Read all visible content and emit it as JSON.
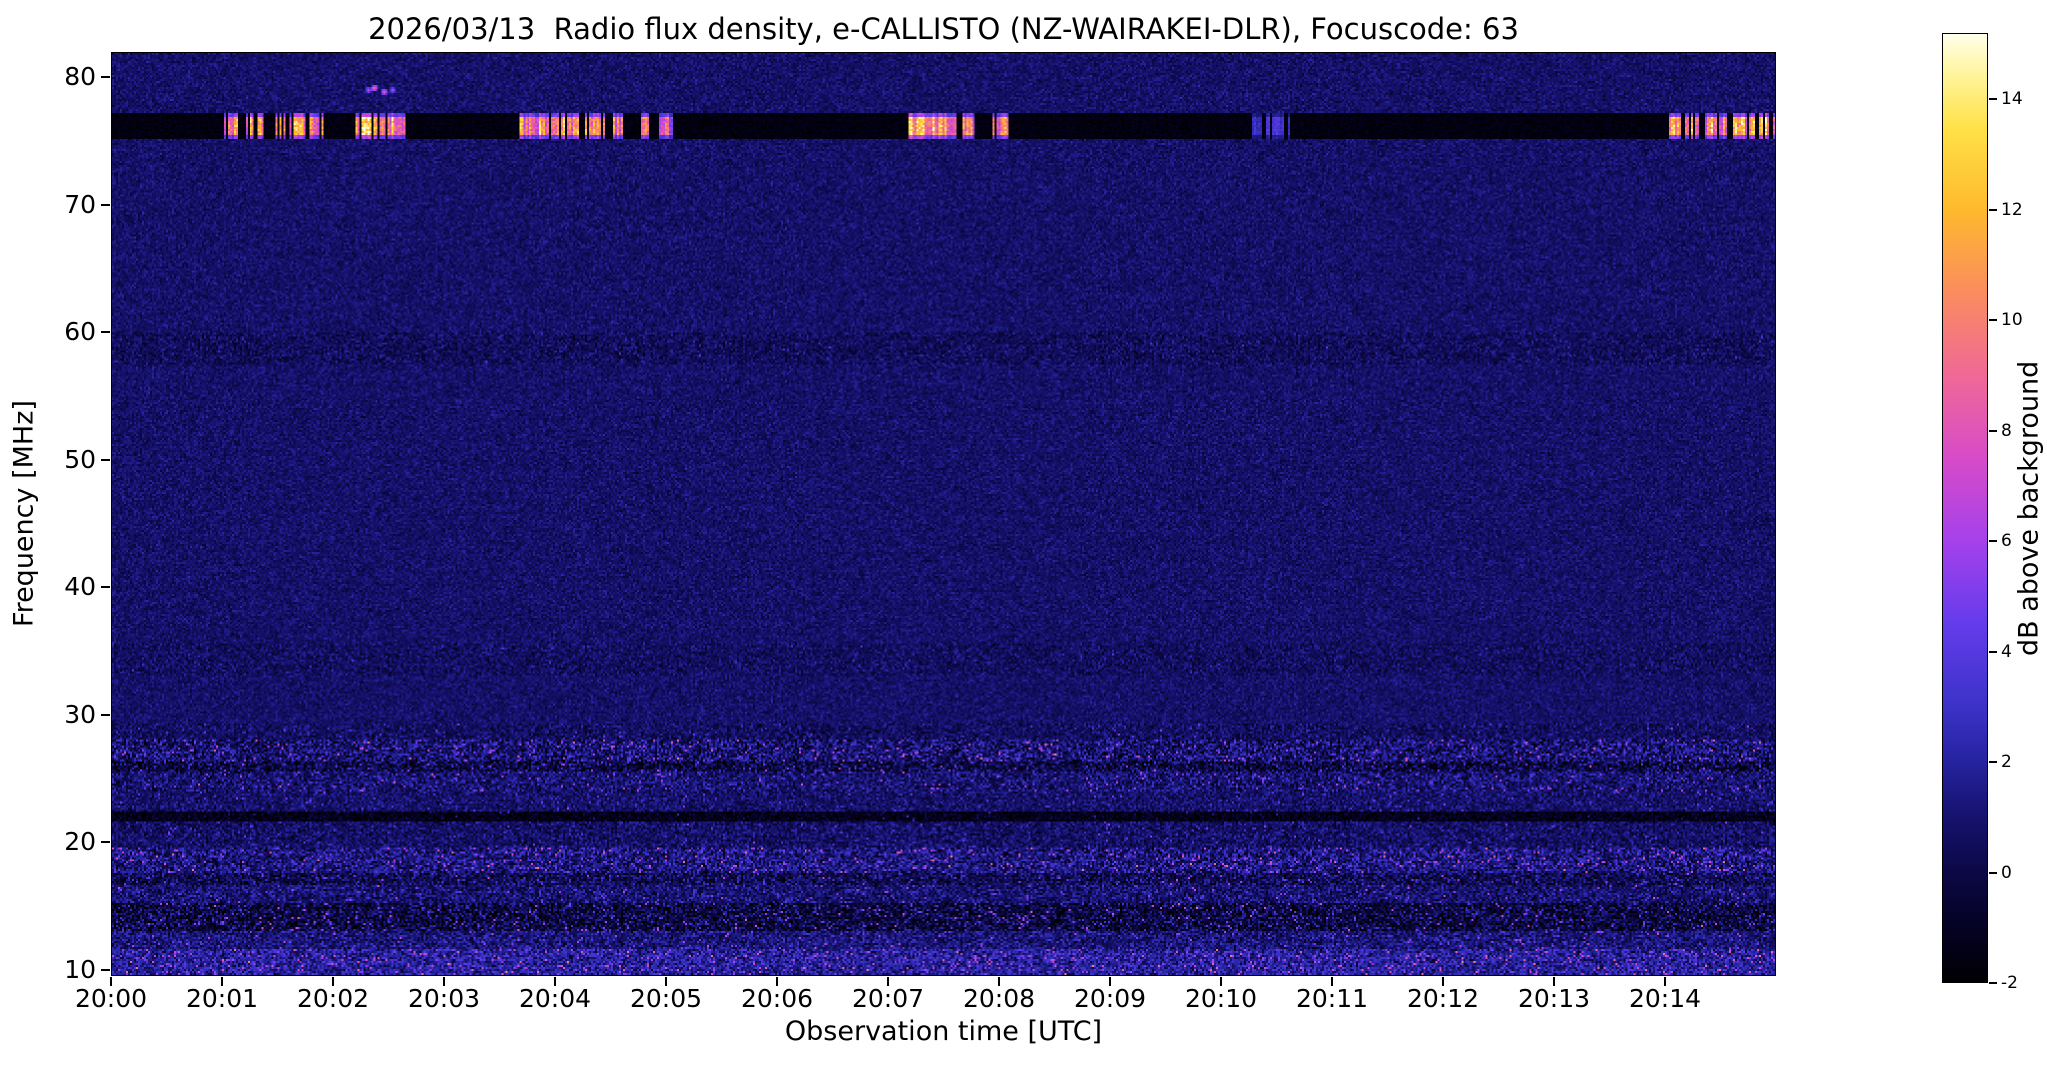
{
  "chart_data": {
    "type": "heatmap",
    "title": "2026/03/13  Radio flux density, e-CALLISTO (NZ-WAIRAKEI-DLR), Focuscode: 63",
    "xlabel": "Observation time [UTC]",
    "ylabel": "Frequency [MHz]",
    "x_ticks": [
      "20:00",
      "20:01",
      "20:02",
      "20:03",
      "20:04",
      "20:05",
      "20:06",
      "20:07",
      "20:08",
      "20:09",
      "20:10",
      "20:11",
      "20:12",
      "20:13",
      "20:14"
    ],
    "x_range_minutes": [
      0,
      15
    ],
    "y_ticks": [
      80,
      70,
      60,
      50,
      40,
      30,
      20,
      10
    ],
    "y_range_mhz": [
      9.5,
      82
    ],
    "grid": false,
    "legend": "none",
    "colorbar": {
      "label": "dB above background",
      "ticks": [
        14,
        12,
        10,
        8,
        6,
        4,
        2,
        0,
        -2
      ],
      "vmin": -2,
      "vmax": 15.2,
      "stops": [
        {
          "t": 0.0,
          "c": [
            0,
            0,
            3
          ]
        },
        {
          "t": 0.058,
          "c": [
            5,
            2,
            35
          ]
        },
        {
          "t": 0.116,
          "c": [
            12,
            8,
            70
          ]
        },
        {
          "t": 0.174,
          "c": [
            22,
            18,
            110
          ]
        },
        {
          "t": 0.233,
          "c": [
            38,
            35,
            160
          ]
        },
        {
          "t": 0.291,
          "c": [
            60,
            50,
            200
          ]
        },
        {
          "t": 0.378,
          "c": [
            100,
            60,
            235
          ]
        },
        {
          "t": 0.465,
          "c": [
            165,
            65,
            235
          ]
        },
        {
          "t": 0.552,
          "c": [
            215,
            75,
            200
          ]
        },
        {
          "t": 0.64,
          "c": [
            240,
            105,
            150
          ]
        },
        {
          "t": 0.727,
          "c": [
            250,
            140,
            95
          ]
        },
        {
          "t": 0.814,
          "c": [
            254,
            185,
            45
          ]
        },
        {
          "t": 0.9,
          "c": [
            255,
            225,
            70
          ]
        },
        {
          "t": 0.96,
          "c": [
            255,
            245,
            160
          ]
        },
        {
          "t": 1.0,
          "c": [
            255,
            255,
            235
          ]
        }
      ]
    },
    "background": {
      "mean_db": 0.8,
      "noise_std_db": 0.55
    },
    "features": {
      "rfi_band": {
        "freq_range": [
          75.3,
          77.25
        ],
        "level_db": -2,
        "bursts": [
          [
            1.02,
            1.1,
            12
          ],
          [
            1.22,
            1.35,
            13
          ],
          [
            1.48,
            1.72,
            14
          ],
          [
            1.8,
            1.88,
            12
          ],
          [
            2.18,
            2.42,
            15
          ],
          [
            2.45,
            2.62,
            14
          ],
          [
            3.68,
            3.82,
            13
          ],
          [
            3.86,
            4.02,
            14
          ],
          [
            4.06,
            4.18,
            13
          ],
          [
            4.28,
            4.42,
            13
          ],
          [
            4.5,
            4.58,
            12
          ],
          [
            4.76,
            4.84,
            11
          ],
          [
            4.95,
            5.03,
            10
          ],
          [
            7.18,
            7.45,
            15
          ],
          [
            7.48,
            7.6,
            13
          ],
          [
            7.68,
            7.76,
            12
          ],
          [
            7.95,
            8.06,
            13
          ],
          [
            10.3,
            10.6,
            4
          ],
          [
            14.05,
            14.28,
            14
          ],
          [
            14.38,
            14.54,
            13
          ],
          [
            14.62,
            14.8,
            13
          ],
          [
            14.86,
            15.0,
            14
          ]
        ]
      },
      "dots_79mhz": [
        [
          2.3,
          79.1,
          7
        ],
        [
          2.36,
          79.35,
          9
        ],
        [
          2.44,
          79.0,
          8
        ],
        [
          2.52,
          79.2,
          6
        ]
      ],
      "noise_bands": [
        {
          "freq": [
            9.5,
            11.5
          ],
          "base_db": 1.9,
          "noise_db": 1.15,
          "speckle_prob": 0.07,
          "speckle_db": 4.5
        },
        {
          "freq": [
            11.5,
            13.0
          ],
          "base_db": 1.1,
          "noise_db": 1.0,
          "speckle_prob": 0.04,
          "speckle_db": 3.5
        },
        {
          "freq": [
            13.0,
            15.2
          ],
          "base_db": -0.2,
          "noise_db": 1.4,
          "speckle_prob": 0.05,
          "speckle_db": 4.5
        },
        {
          "freq": [
            15.2,
            16.5
          ],
          "base_db": 0.9,
          "noise_db": 1.0,
          "speckle_prob": 0.03,
          "speckle_db": 3.5
        },
        {
          "freq": [
            16.5,
            17.5
          ],
          "base_db": 0.3,
          "noise_db": 1.15,
          "speckle_prob": 0.03,
          "speckle_db": 3.5
        },
        {
          "freq": [
            17.5,
            19.5
          ],
          "base_db": 1.2,
          "noise_db": 1.3,
          "speckle_prob": 0.06,
          "speckle_db": 4.5
        },
        {
          "freq": [
            19.5,
            21.6
          ],
          "base_db": 0.7,
          "noise_db": 0.85,
          "speckle_prob": 0.02,
          "speckle_db": 3.0
        },
        {
          "freq": [
            21.6,
            22.4
          ],
          "base_db": -1.3,
          "noise_db": 0.7,
          "speckle_prob": 0.01,
          "speckle_db": 3.0
        },
        {
          "freq": [
            22.4,
            24.0
          ],
          "base_db": 0.8,
          "noise_db": 0.8,
          "speckle_prob": 0.02,
          "speckle_db": 3.0
        },
        {
          "freq": [
            24.0,
            25.5
          ],
          "base_db": 0.9,
          "noise_db": 1.05,
          "speckle_prob": 0.04,
          "speckle_db": 4.0
        },
        {
          "freq": [
            25.5,
            26.3
          ],
          "base_db": -0.1,
          "noise_db": 1.3,
          "speckle_prob": 0.04,
          "speckle_db": 4.0
        },
        {
          "freq": [
            26.3,
            28.0
          ],
          "base_db": 0.9,
          "noise_db": 1.35,
          "speckle_prob": 0.05,
          "speckle_db": 4.5
        },
        {
          "freq": [
            28.0,
            29.2
          ],
          "base_db": 0.6,
          "noise_db": 0.8,
          "speckle_prob": 0.015,
          "speckle_db": 3.0
        },
        {
          "freq": [
            33.0,
            35.5
          ],
          "base_db": 0.6,
          "noise_db": 0.7,
          "speckle_prob": 0.005,
          "speckle_db": 2.0
        },
        {
          "freq": [
            57.5,
            60.0
          ],
          "base_db": 0.5,
          "noise_db": 0.75,
          "speckle_prob": 0.008,
          "speckle_db": 2.0
        }
      ]
    }
  }
}
